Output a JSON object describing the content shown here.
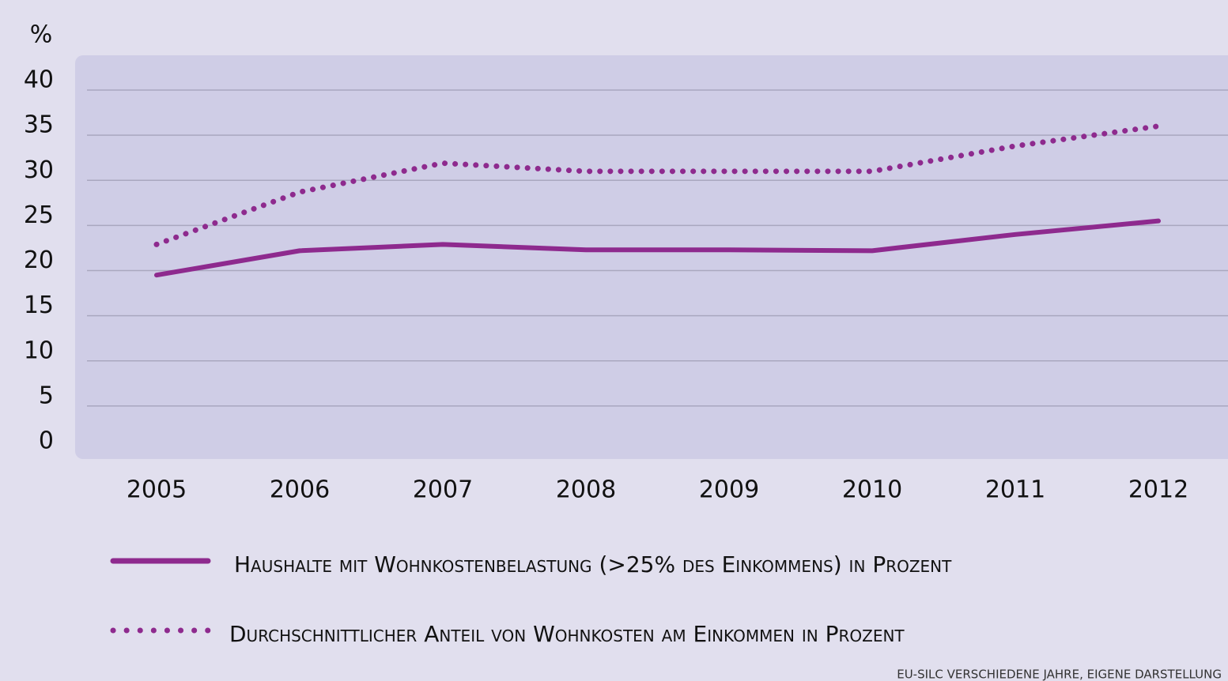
{
  "chart_data": {
    "type": "line",
    "y_unit_label": "%",
    "categories": [
      "2005",
      "2006",
      "2007",
      "2008",
      "2009",
      "2010",
      "2011",
      "2012"
    ],
    "series": [
      {
        "name": "Haushalte mit Wohnkostenbelastung (>25% des Einkommens) in Prozent",
        "color": "#8e2a8e",
        "style": "solid",
        "values": [
          19.5,
          22.2,
          22.9,
          22.3,
          22.3,
          22.2,
          24.0,
          25.5
        ]
      },
      {
        "name": "Durchschnittlicher Anteil von Wohnkosten am Einkommen in Prozent",
        "color": "#8e2a8e",
        "style": "dotted",
        "values": [
          22.9,
          28.7,
          31.9,
          31.0,
          31.0,
          31.0,
          33.8,
          36.0
        ]
      }
    ],
    "ylim": [
      0,
      40
    ],
    "yticks": [
      0,
      5,
      10,
      15,
      20,
      25,
      30,
      35,
      40
    ],
    "grid": true,
    "source": "EU-SILC VERSCHIEDENE JAHRE, EIGENE DARSTELLUNG"
  }
}
